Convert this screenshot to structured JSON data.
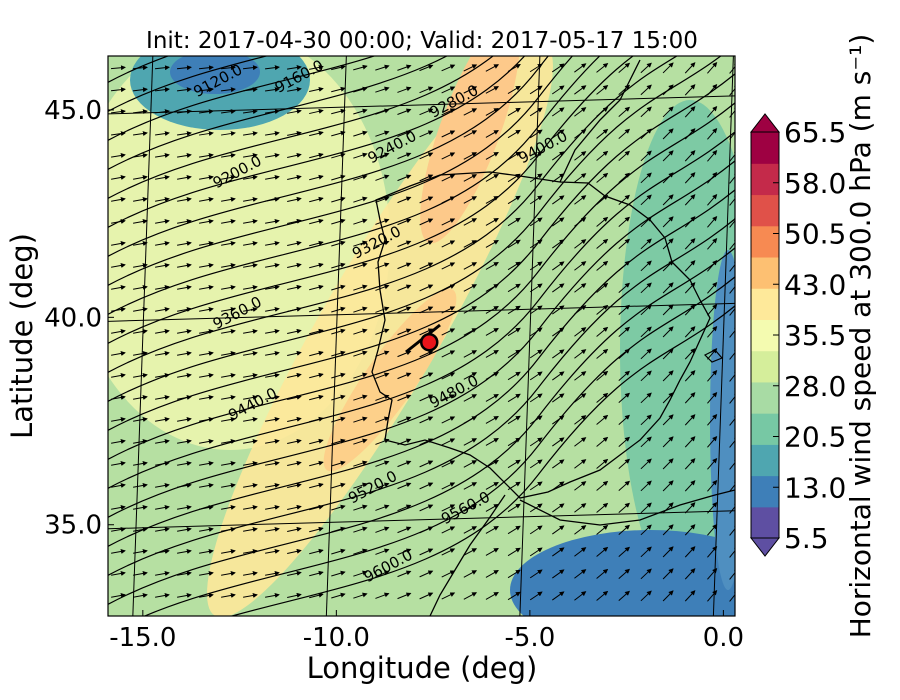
{
  "chart_data": {
    "type": "heatmap",
    "title": "Init: 2017-04-30 00:00; Valid: 2017-05-17 15:00",
    "xlabel": "Longitude (deg)",
    "ylabel": "Latitude (deg)",
    "xlim": [
      -15.9,
      0.3
    ],
    "ylim": [
      32.8,
      46.3
    ],
    "x_ticks": [
      {
        "value": -15.0,
        "label": "-15.0"
      },
      {
        "value": -10.0,
        "label": "-10.0"
      },
      {
        "value": -5.0,
        "label": "-5.0"
      },
      {
        "value": 0.0,
        "label": "0.0"
      }
    ],
    "y_ticks": [
      {
        "value": 45.0,
        "label": "45.0"
      },
      {
        "value": 40.0,
        "label": "40.0"
      },
      {
        "value": 35.0,
        "label": "35.0"
      }
    ],
    "colorbar": {
      "label": "Horizontal wind speed at 300.0 hPa (m s⁻¹)",
      "min": 5.5,
      "max": 65.5,
      "ticks": [
        {
          "value": 65.5,
          "label": "65.5"
        },
        {
          "value": 58.0,
          "label": "58.0"
        },
        {
          "value": 50.5,
          "label": "50.5"
        },
        {
          "value": 43.0,
          "label": "43.0"
        },
        {
          "value": 35.5,
          "label": "35.5"
        },
        {
          "value": 28.0,
          "label": "28.0"
        },
        {
          "value": 20.5,
          "label": "20.5"
        },
        {
          "value": 13.0,
          "label": "13.0"
        },
        {
          "value": 5.5,
          "label": "5.5"
        }
      ],
      "colors": [
        "#5e4fa2",
        "#3e7fb8",
        "#4fa6b0",
        "#77c8a4",
        "#a8dba4",
        "#d5ee9b",
        "#f4fbb0",
        "#fee99a",
        "#fdc072",
        "#f78a52",
        "#e05149",
        "#c42a4a",
        "#9e0142"
      ]
    },
    "contour_labels": [
      {
        "text": "9120.0",
        "lon": -13.0,
        "lat": 45.6
      },
      {
        "text": "9160.0",
        "lon": -10.9,
        "lat": 45.7
      },
      {
        "text": "9280.0",
        "lon": -6.9,
        "lat": 45.1
      },
      {
        "text": "9200.0",
        "lon": -12.5,
        "lat": 43.4
      },
      {
        "text": "9240.0",
        "lon": -8.5,
        "lat": 44.0
      },
      {
        "text": "9400.0",
        "lon": -4.6,
        "lat": 44.0
      },
      {
        "text": "9320.0",
        "lon": -8.9,
        "lat": 41.7
      },
      {
        "text": "9360.0",
        "lon": -12.5,
        "lat": 40.0
      },
      {
        "text": "9440.0",
        "lon": -12.1,
        "lat": 37.8
      },
      {
        "text": "9480.0",
        "lon": -6.9,
        "lat": 38.1
      },
      {
        "text": "9520.0",
        "lon": -9.0,
        "lat": 35.8
      },
      {
        "text": "9560.0",
        "lon": -6.6,
        "lat": 35.3
      },
      {
        "text": "9600.0",
        "lon": -8.6,
        "lat": 33.9
      }
    ],
    "marker": {
      "lon": -7.6,
      "lat": 39.4,
      "color": "#e8141a"
    }
  }
}
